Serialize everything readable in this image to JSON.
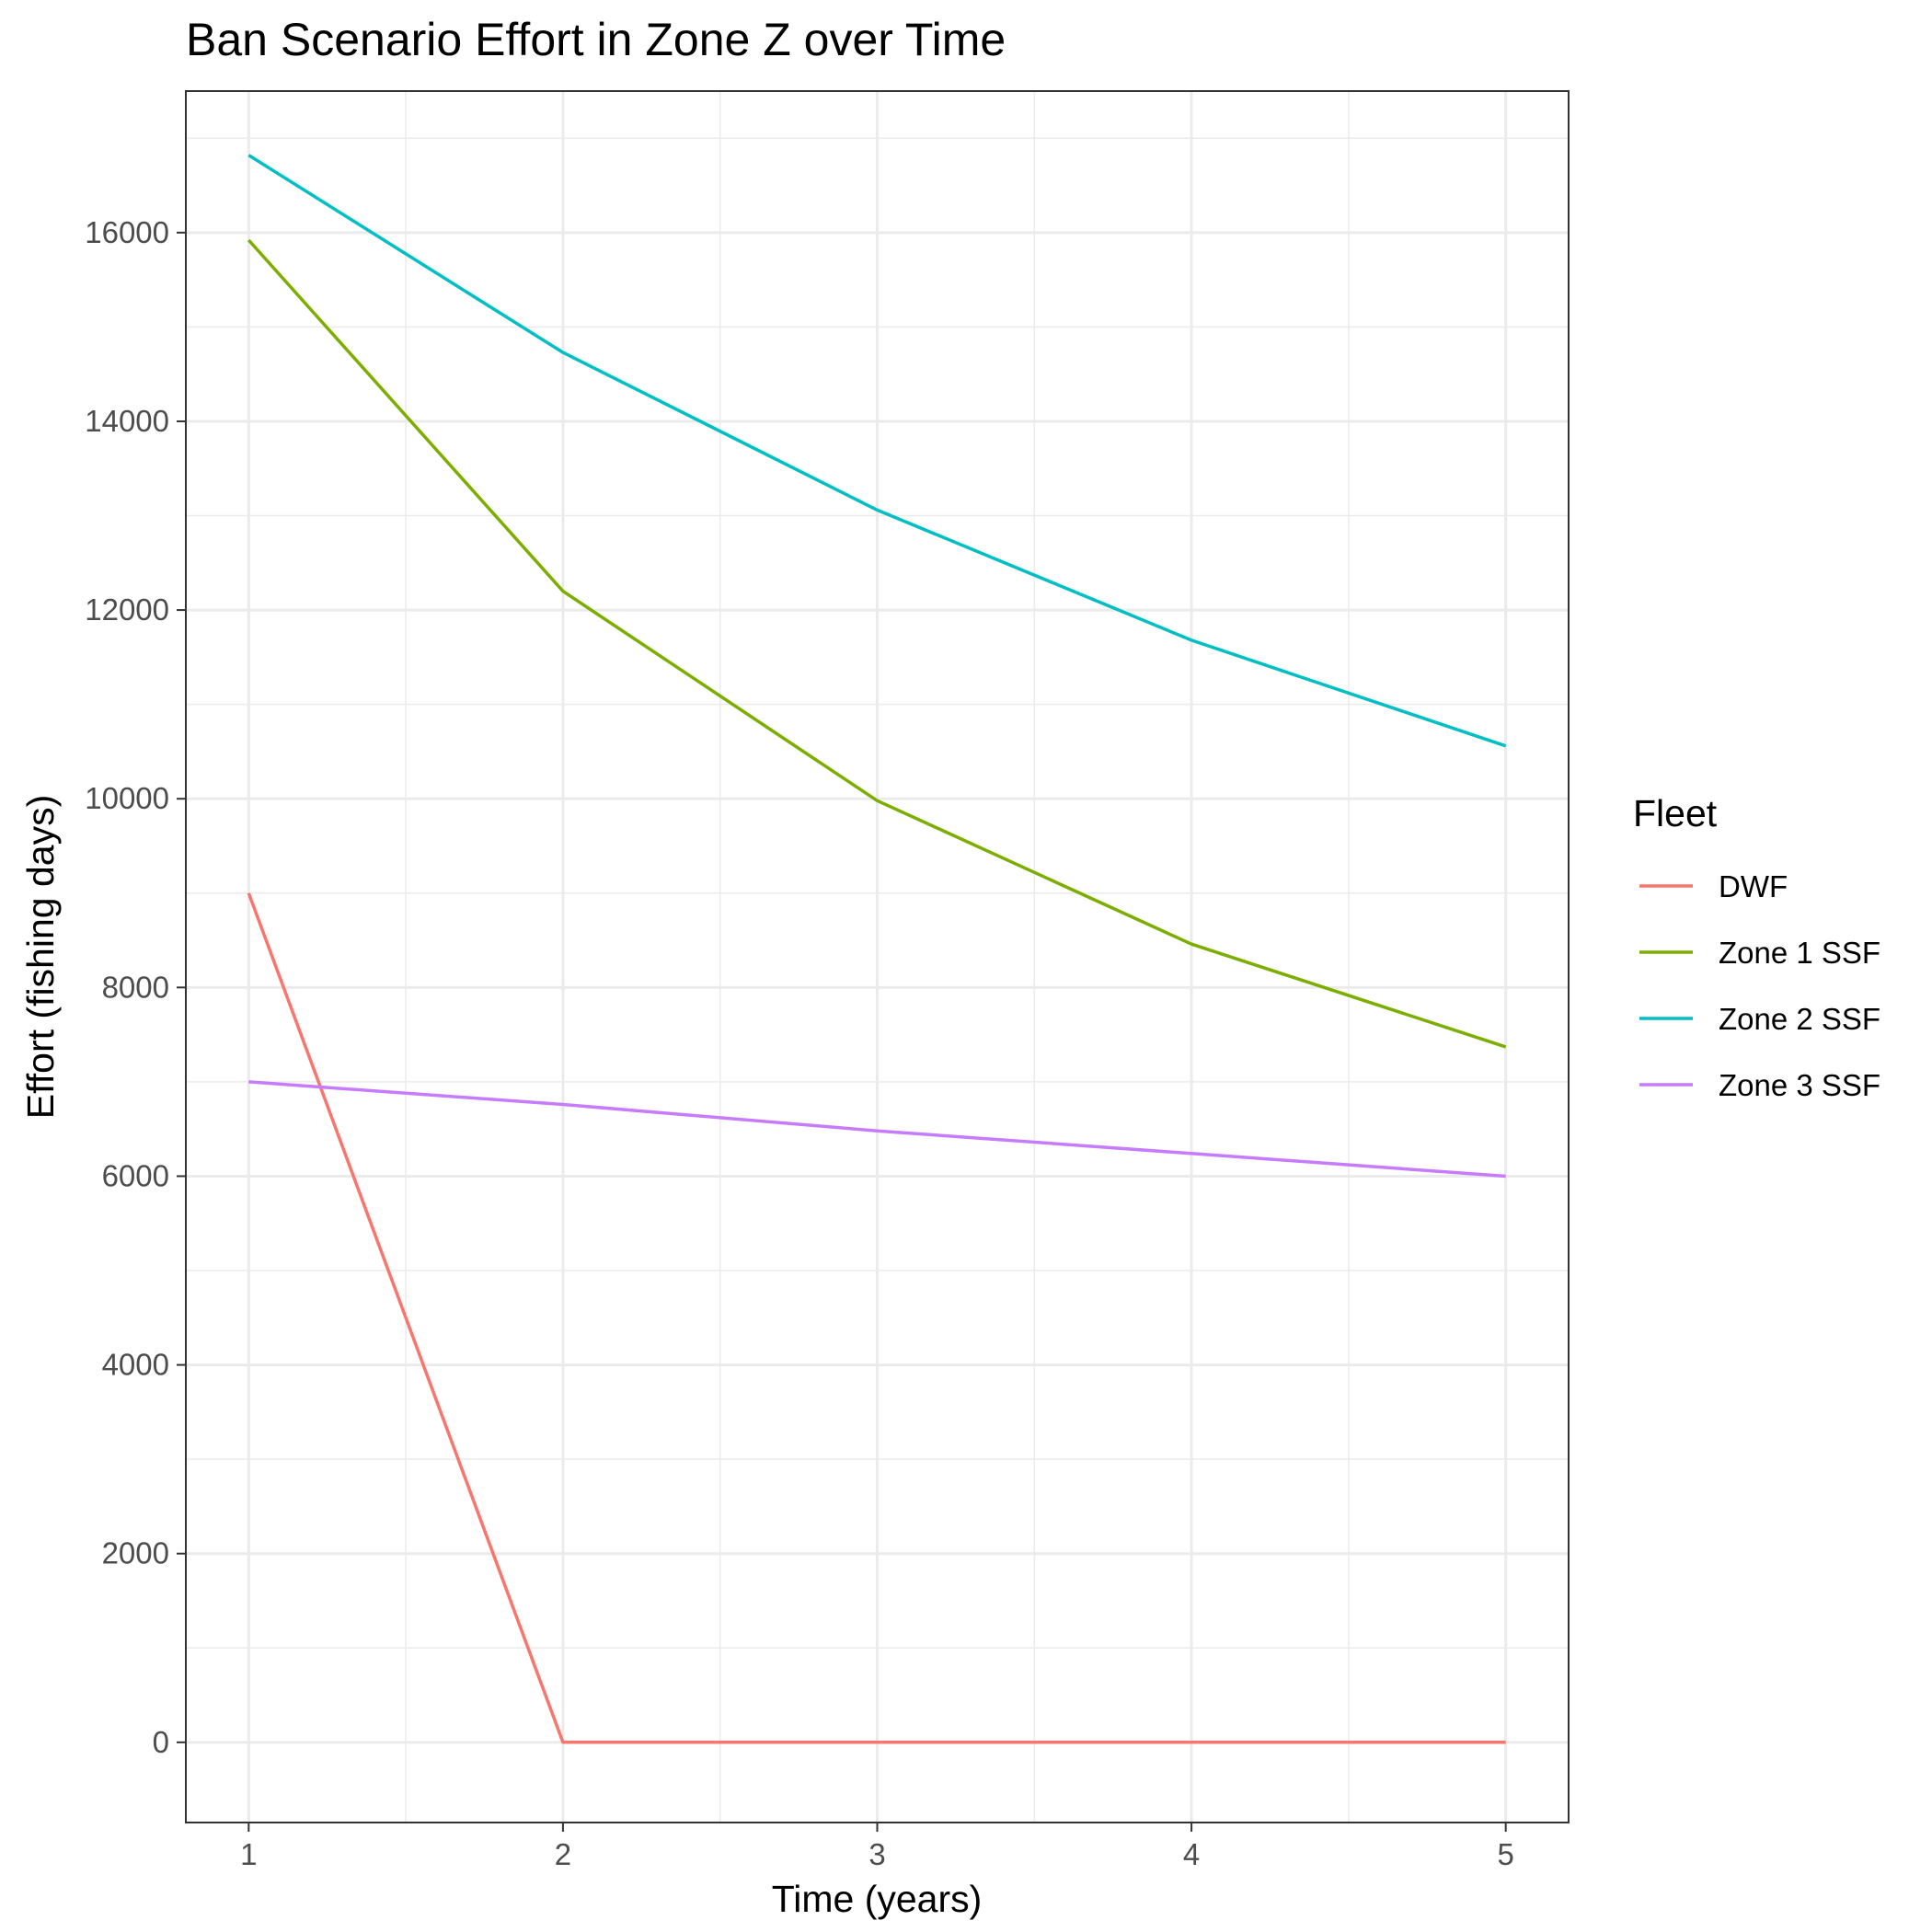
{
  "chart_data": {
    "type": "line",
    "title": "Ban Scenario Effort in Zone Z over Time",
    "xlabel": "Time (years)",
    "ylabel": "Effort (fishing days)",
    "x": [
      1,
      2,
      3,
      4,
      5
    ],
    "xlim": [
      0.8,
      5.2
    ],
    "ylim": [
      -850,
      17500
    ],
    "x_ticks": [
      1,
      2,
      3,
      4,
      5
    ],
    "x_tick_labels": [
      "1",
      "2",
      "3",
      "4",
      "5"
    ],
    "y_ticks": [
      0,
      2000,
      4000,
      6000,
      8000,
      10000,
      12000,
      14000,
      16000
    ],
    "y_tick_labels": [
      "0",
      "2000",
      "4000",
      "6000",
      "8000",
      "10000",
      "12000",
      "14000",
      "16000"
    ],
    "grid": true,
    "legend": {
      "title": "Fleet",
      "position": "right"
    },
    "series": [
      {
        "name": "DWF",
        "color": "#F8766D",
        "values": [
          9000,
          0,
          0,
          0,
          0
        ]
      },
      {
        "name": "Zone 1 SSF",
        "color": "#7CAE00",
        "values": [
          15920,
          12200,
          9980,
          8460,
          7370
        ]
      },
      {
        "name": "Zone 2 SSF",
        "color": "#00BFC4",
        "values": [
          16820,
          14730,
          13060,
          11680,
          10560
        ]
      },
      {
        "name": "Zone 3 SSF",
        "color": "#C77CFF",
        "values": [
          7000,
          6760,
          6480,
          6240,
          6000
        ]
      }
    ]
  }
}
